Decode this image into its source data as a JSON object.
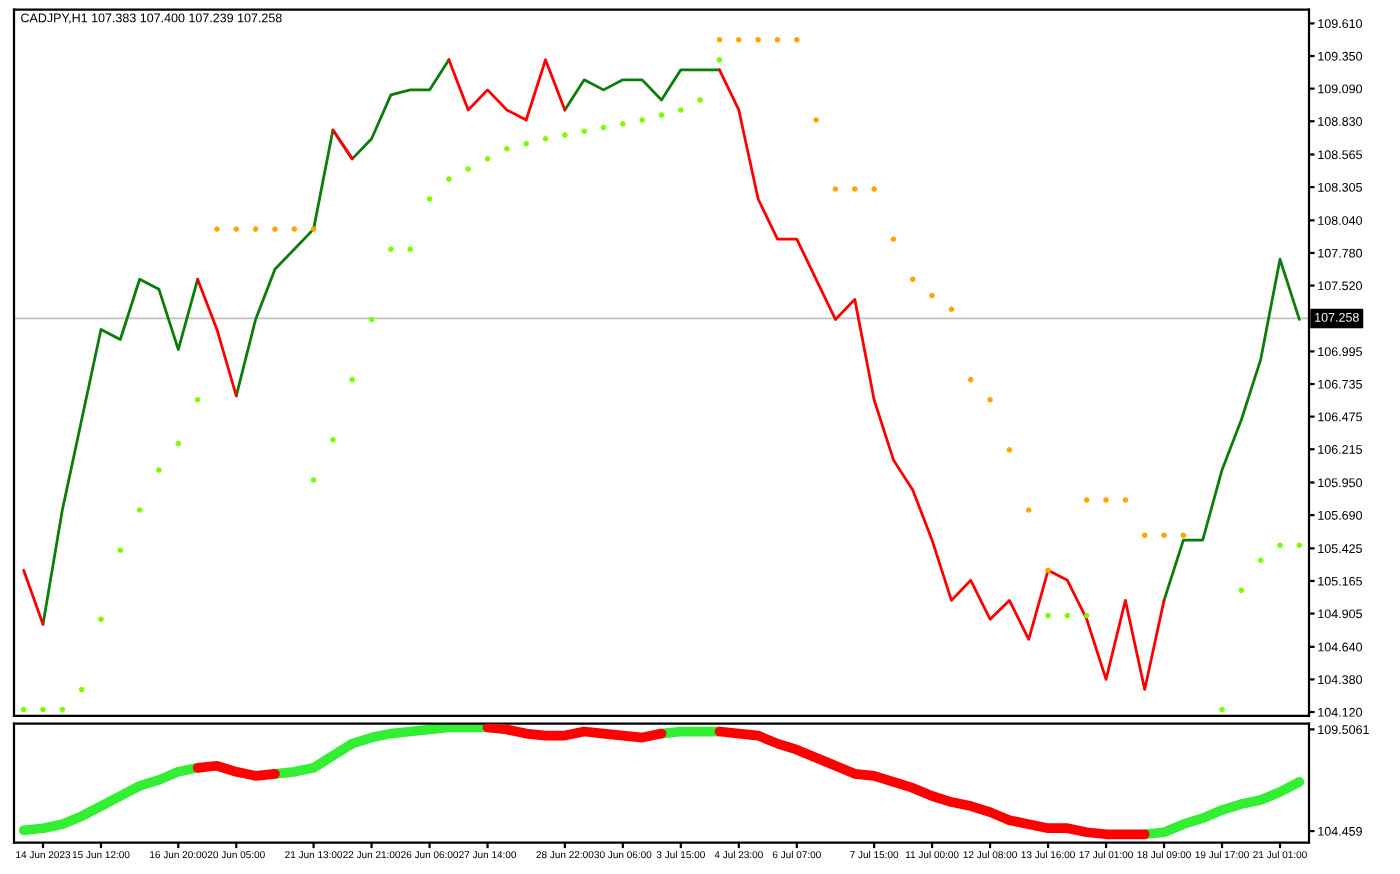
{
  "chart_data": [
    {
      "type": "line",
      "title": "CADJPY,H1 107.383 107.400 107.239 107.258",
      "categories": [
        null,
        null,
        null,
        null,
        null,
        null,
        null,
        null,
        null,
        null,
        null,
        null,
        null,
        null,
        null,
        null,
        null,
        null,
        null,
        null,
        null,
        null,
        null,
        null,
        null,
        null,
        null,
        null,
        null,
        null,
        null,
        null,
        null,
        null,
        null,
        null,
        null,
        null,
        null,
        null,
        null,
        null,
        null,
        null,
        null,
        null,
        null,
        null,
        null,
        null,
        null,
        null,
        null,
        null,
        null,
        null,
        null,
        null,
        null,
        null,
        null,
        null,
        null,
        null,
        null,
        null,
        null
      ],
      "series": [
        {
          "color": "#0a7d0a",
          "values": [
            null,
            104.82,
            105.73,
            106.45,
            107.17,
            107.09,
            107.57,
            107.49,
            107.01,
            107.57,
            null,
            106.64,
            107.25,
            107.65,
            107.81,
            107.97,
            108.76,
            108.53,
            108.69,
            109.04,
            109.08,
            109.08,
            109.32,
            null,
            null,
            null,
            null,
            null,
            108.92,
            109.16,
            109.08,
            109.16,
            109.16,
            109.0,
            109.24,
            109.24,
            109.24,
            null,
            null,
            null,
            null,
            null,
            null,
            null,
            null,
            null,
            null,
            null,
            null,
            null,
            null,
            null,
            null,
            null,
            null,
            null,
            null,
            null,
            null,
            105.01,
            105.49,
            105.49,
            106.05,
            106.45,
            106.93,
            107.73,
            107.25
          ]
        },
        {
          "color": "#ff0000",
          "values": [
            105.25,
            104.82,
            null,
            null,
            null,
            null,
            null,
            null,
            null,
            107.57,
            107.17,
            106.64,
            null,
            null,
            null,
            null,
            108.76,
            108.53,
            null,
            null,
            null,
            null,
            109.32,
            108.92,
            109.08,
            108.92,
            108.84,
            109.32,
            108.92,
            null,
            null,
            null,
            null,
            null,
            null,
            null,
            109.24,
            108.92,
            108.21,
            107.89,
            107.89,
            107.57,
            107.25,
            107.41,
            106.61,
            106.13,
            105.89,
            105.49,
            105.01,
            105.17,
            104.86,
            105.01,
            104.7,
            105.25,
            105.17,
            104.86,
            104.38,
            105.01,
            104.3,
            105.01,
            null,
            null,
            null,
            null,
            null,
            null,
            null
          ]
        },
        {
          "type": "scatter",
          "color": "#ffa500",
          "values": [
            null,
            null,
            null,
            null,
            null,
            null,
            null,
            null,
            null,
            null,
            107.97,
            107.97,
            107.97,
            107.97,
            107.97,
            107.97,
            null,
            null,
            null,
            null,
            null,
            null,
            null,
            null,
            null,
            null,
            null,
            null,
            null,
            null,
            null,
            null,
            null,
            null,
            null,
            null,
            109.48,
            109.48,
            109.48,
            109.48,
            109.48,
            108.84,
            108.29,
            108.29,
            108.29,
            107.89,
            107.57,
            107.44,
            107.33,
            106.77,
            106.61,
            106.21,
            105.73,
            105.25,
            null,
            105.81,
            105.81,
            105.81,
            105.53,
            105.53,
            105.53,
            null,
            null,
            null,
            null,
            null,
            null
          ]
        },
        {
          "type": "scatter",
          "color": "#7cfc00",
          "values": [
            104.14,
            104.14,
            104.14,
            104.3,
            104.86,
            105.41,
            105.73,
            106.05,
            106.26,
            106.61,
            null,
            null,
            null,
            null,
            null,
            105.97,
            106.29,
            106.77,
            107.25,
            107.81,
            107.81,
            108.21,
            108.37,
            108.45,
            108.53,
            108.61,
            108.65,
            108.69,
            108.72,
            108.75,
            108.78,
            108.81,
            108.84,
            108.88,
            108.92,
            109.0,
            109.32,
            null,
            null,
            null,
            null,
            null,
            null,
            null,
            null,
            null,
            null,
            null,
            null,
            null,
            null,
            null,
            null,
            104.89,
            104.89,
            104.89,
            null,
            null,
            null,
            null,
            null,
            null,
            104.14,
            105.09,
            105.33,
            105.45,
            105.45
          ]
        }
      ],
      "ylim": [
        104.09,
        109.72
      ],
      "yticks": [
        {
          "value": 109.61,
          "label": "109.610"
        },
        {
          "value": 109.35,
          "label": "109.350"
        },
        {
          "value": 109.09,
          "label": "109.090"
        },
        {
          "value": 108.83,
          "label": "108.830"
        },
        108.565,
        {
          "value": 108.305,
          "label": "108.305"
        },
        {
          "value": 108.04,
          "label": "108.040"
        },
        {
          "value": 107.78,
          "label": "107.780"
        },
        {
          "value": 107.52,
          "label": "107.520"
        },
        106.995,
        106.735,
        106.475,
        106.215,
        {
          "value": 105.95,
          "label": "105.950"
        },
        {
          "value": 105.69,
          "label": "105.690"
        },
        105.425,
        105.165,
        104.905,
        {
          "value": 104.64,
          "label": "104.640"
        },
        {
          "value": 104.38,
          "label": "104.380"
        },
        {
          "value": 104.12,
          "label": "104.120"
        }
      ],
      "ref_lines": [
        {
          "axis": "y",
          "value": 107.258,
          "label": "107.258",
          "color": "#c0c0c0"
        }
      ],
      "tick_labels": "y",
      "grid": false,
      "legend": false
    },
    {
      "type": "line",
      "categories": [
        null,
        "14 Jun 2023",
        null,
        null,
        "15 Jun 12:00",
        null,
        null,
        null,
        "16 Jun 20:00",
        null,
        null,
        "20 Jun 05:00",
        null,
        null,
        null,
        "21 Jun 13:00",
        null,
        null,
        "22 Jun 21:00",
        null,
        null,
        "26 Jun 06:00",
        null,
        null,
        "27 Jun 14:00",
        null,
        null,
        null,
        "28 Jun 22:00",
        null,
        null,
        "30 Jun 06:00",
        null,
        null,
        "3 Jul 15:00",
        null,
        null,
        "4 Jul 23:00",
        null,
        null,
        "6 Jul 07:00",
        null,
        null,
        null,
        "7 Jul 15:00",
        null,
        null,
        "11 Jul 00:00",
        null,
        null,
        "12 Jul 08:00",
        null,
        null,
        "13 Jul 16:00",
        null,
        null,
        "17 Jul 01:00",
        null,
        null,
        "18 Jul 09:00",
        null,
        null,
        "19 Jul 17:00",
        null,
        null,
        "21 Jul 01:00",
        null
      ],
      "series": [
        {
          "color": "#33ee33",
          "values": [
            104.5,
            104.6,
            104.8,
            105.2,
            105.7,
            106.2,
            106.7,
            107.0,
            107.4,
            107.6,
            null,
            null,
            null,
            107.3,
            107.4,
            107.6,
            108.2,
            108.8,
            109.1,
            109.3,
            109.4,
            109.5,
            109.6,
            109.6,
            109.6,
            null,
            null,
            null,
            null,
            null,
            null,
            null,
            null,
            109.3,
            109.4,
            109.4,
            109.4,
            null,
            null,
            null,
            null,
            null,
            null,
            null,
            null,
            null,
            null,
            null,
            null,
            null,
            null,
            null,
            null,
            null,
            null,
            null,
            null,
            null,
            104.3,
            104.4,
            104.8,
            105.1,
            105.5,
            105.8,
            106.0,
            106.4,
            106.9
          ]
        },
        {
          "color": "#ff0000",
          "values": [
            null,
            null,
            null,
            null,
            null,
            null,
            null,
            null,
            null,
            107.6,
            107.7,
            107.4,
            107.2,
            107.3,
            null,
            null,
            null,
            null,
            null,
            null,
            null,
            null,
            null,
            null,
            109.6,
            109.5,
            109.3,
            109.2,
            109.2,
            109.4,
            109.3,
            109.2,
            109.1,
            109.3,
            null,
            null,
            109.4,
            109.3,
            109.2,
            108.8,
            108.5,
            108.1,
            107.7,
            107.3,
            107.2,
            106.9,
            106.6,
            106.2,
            105.9,
            105.7,
            105.4,
            105.0,
            104.8,
            104.6,
            104.6,
            104.4,
            104.3,
            104.3,
            104.3,
            null,
            null,
            null,
            null,
            null,
            null,
            null,
            null
          ]
        }
      ],
      "ylim": [
        103.89,
        109.79
      ],
      "yticks": [
        109.5061,
        104.459
      ],
      "grid": false,
      "legend": false
    }
  ]
}
